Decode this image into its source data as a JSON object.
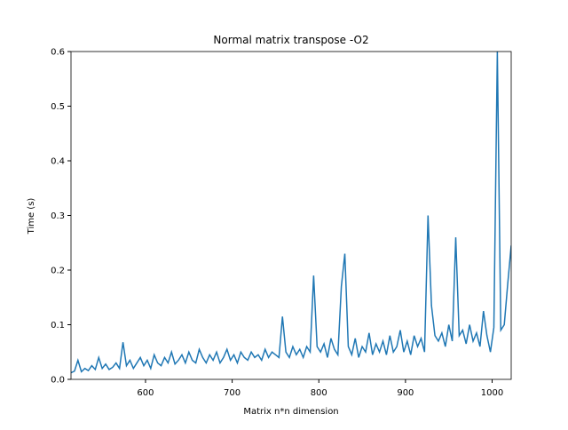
{
  "chart_data": {
    "type": "line",
    "title": "Normal matrix transpose -O2",
    "x_label": "Matrix n*n dimension",
    "y_label": "Time (s)",
    "x": [
      514,
      518,
      522,
      526,
      530,
      534,
      538,
      542,
      546,
      550,
      554,
      558,
      562,
      566,
      570,
      574,
      578,
      582,
      586,
      590,
      594,
      598,
      602,
      606,
      610,
      614,
      618,
      622,
      626,
      630,
      634,
      638,
      642,
      646,
      650,
      654,
      658,
      662,
      666,
      670,
      674,
      678,
      682,
      686,
      690,
      694,
      698,
      702,
      706,
      710,
      714,
      718,
      722,
      726,
      730,
      734,
      738,
      742,
      746,
      750,
      754,
      758,
      762,
      766,
      770,
      774,
      778,
      782,
      786,
      790,
      794,
      798,
      802,
      806,
      810,
      814,
      818,
      822,
      826,
      830,
      834,
      838,
      842,
      846,
      850,
      854,
      858,
      862,
      866,
      870,
      874,
      878,
      882,
      886,
      890,
      894,
      898,
      902,
      906,
      910,
      914,
      918,
      922,
      926,
      930,
      934,
      938,
      942,
      946,
      950,
      954,
      958,
      962,
      966,
      970,
      974,
      978,
      982,
      986,
      990,
      994,
      998,
      1002,
      1006,
      1010,
      1014,
      1018,
      1022
    ],
    "series": [
      {
        "name": "time",
        "color": "#1f77b4",
        "values": [
          0.012,
          0.015,
          0.035,
          0.014,
          0.02,
          0.016,
          0.025,
          0.018,
          0.04,
          0.02,
          0.028,
          0.018,
          0.022,
          0.03,
          0.02,
          0.068,
          0.025,
          0.035,
          0.02,
          0.03,
          0.04,
          0.025,
          0.035,
          0.02,
          0.045,
          0.03,
          0.025,
          0.04,
          0.03,
          0.05,
          0.028,
          0.035,
          0.045,
          0.03,
          0.05,
          0.035,
          0.03,
          0.055,
          0.04,
          0.03,
          0.045,
          0.035,
          0.05,
          0.03,
          0.04,
          0.055,
          0.035,
          0.045,
          0.03,
          0.05,
          0.04,
          0.035,
          0.05,
          0.04,
          0.045,
          0.035,
          0.055,
          0.04,
          0.05,
          0.045,
          0.04,
          0.115,
          0.05,
          0.04,
          0.06,
          0.045,
          0.055,
          0.04,
          0.06,
          0.05,
          0.19,
          0.06,
          0.05,
          0.065,
          0.04,
          0.075,
          0.055,
          0.045,
          0.17,
          0.23,
          0.06,
          0.045,
          0.075,
          0.04,
          0.06,
          0.05,
          0.085,
          0.045,
          0.065,
          0.05,
          0.07,
          0.045,
          0.08,
          0.05,
          0.06,
          0.09,
          0.05,
          0.07,
          0.045,
          0.08,
          0.06,
          0.075,
          0.05,
          0.3,
          0.135,
          0.08,
          0.07,
          0.085,
          0.06,
          0.1,
          0.07,
          0.26,
          0.08,
          0.09,
          0.065,
          0.1,
          0.07,
          0.085,
          0.06,
          0.125,
          0.08,
          0.05,
          0.095,
          0.6,
          0.09,
          0.1,
          0.175,
          0.245
        ]
      }
    ],
    "xlim": [
      514,
      1022
    ],
    "ylim": [
      0,
      0.6
    ],
    "xticks": [
      600,
      700,
      800,
      900,
      1000
    ],
    "yticks": [
      0.0,
      0.1,
      0.2,
      0.3,
      0.4,
      0.5,
      0.6
    ]
  }
}
